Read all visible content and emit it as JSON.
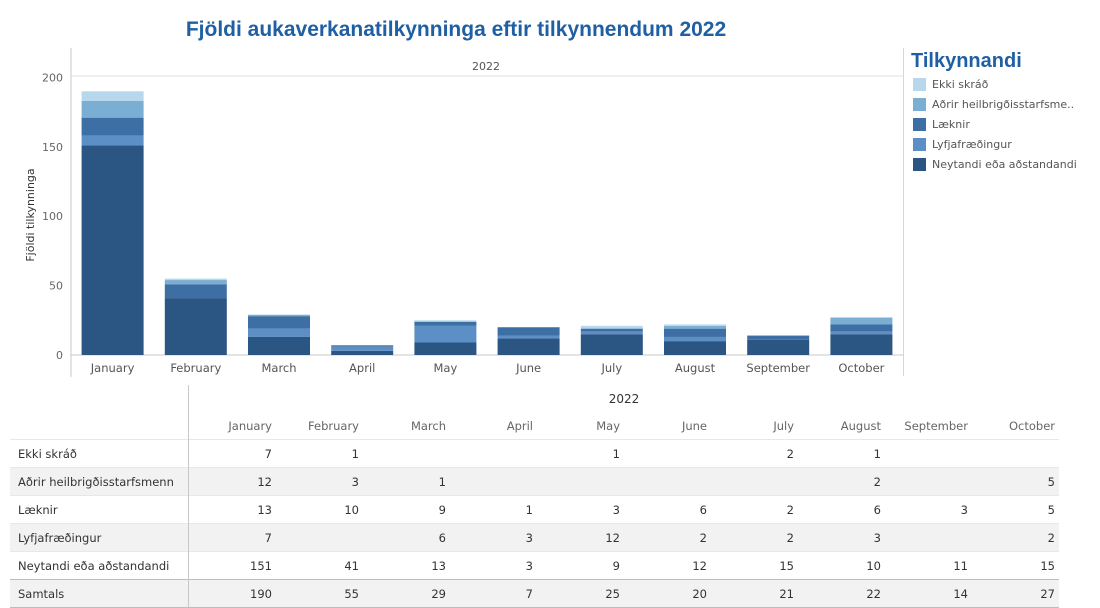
{
  "title": "Fjöldi aukaverkanatilkynninga eftir tilkynnendum 2022",
  "legend_title": "Tilkynnandi",
  "colors": {
    "Ekki skráð": "#b7d8ec",
    "Aðrir heilbrigðisstarfsmenn": "#7aaed3",
    "Læknir": "#3e6fa4",
    "Lyfjafræðingur": "#5b8fc5",
    "Neytandi eða aðstandandi": "#2b5583"
  },
  "legend": [
    {
      "label": "Ekki skráð",
      "color": "#b7d8ec"
    },
    {
      "label": "Aðrir heilbrigðisstarfsme..",
      "color": "#7aaed3"
    },
    {
      "label": "Læknir",
      "color": "#3e6fa4"
    },
    {
      "label": "Lyfjafræðingur",
      "color": "#5b8fc5"
    },
    {
      "label": "Neytandi eða aðstandandi",
      "color": "#2b5583"
    }
  ],
  "chart_data": {
    "type": "bar",
    "stacked": true,
    "panel_header": "2022",
    "title": "Fjöldi aukaverkanatilkynninga eftir tilkynnendum 2022",
    "ylabel": "Fjöldi tilkynninga",
    "xlabel": "",
    "ylim": [
      0,
      205
    ],
    "yticks": [
      0,
      50,
      100,
      150,
      200
    ],
    "categories": [
      "January",
      "February",
      "March",
      "April",
      "May",
      "June",
      "July",
      "August",
      "September",
      "October"
    ],
    "series": [
      {
        "name": "Neytandi eða aðstandandi",
        "values": [
          151,
          41,
          13,
          3,
          9,
          12,
          15,
          10,
          11,
          15
        ]
      },
      {
        "name": "Lyfjafræðingur",
        "values": [
          7,
          0,
          6,
          3,
          12,
          2,
          2,
          3,
          0,
          2
        ]
      },
      {
        "name": "Læknir",
        "values": [
          13,
          10,
          9,
          1,
          3,
          6,
          2,
          6,
          3,
          5
        ]
      },
      {
        "name": "Aðrir heilbrigðisstarfsmenn",
        "values": [
          12,
          3,
          1,
          0,
          0,
          0,
          0,
          2,
          0,
          5
        ]
      },
      {
        "name": "Ekki skráð",
        "values": [
          7,
          1,
          0,
          0,
          1,
          0,
          2,
          1,
          0,
          0
        ]
      }
    ],
    "grid": false,
    "legend_position": "right"
  },
  "table": {
    "year": "2022",
    "months": [
      "January",
      "February",
      "March",
      "April",
      "May",
      "June",
      "July",
      "August",
      "September",
      "October"
    ],
    "rows": [
      {
        "label": "Ekki skráð",
        "values": [
          "7",
          "1",
          "",
          "",
          "1",
          "",
          "2",
          "1",
          "",
          ""
        ]
      },
      {
        "label": "Aðrir heilbrigðisstarfsmenn",
        "values": [
          "12",
          "3",
          "1",
          "",
          "",
          "",
          "",
          "2",
          "",
          "5"
        ]
      },
      {
        "label": "Læknir",
        "values": [
          "13",
          "10",
          "9",
          "1",
          "3",
          "6",
          "2",
          "6",
          "3",
          "5"
        ]
      },
      {
        "label": "Lyfjafræðingur",
        "values": [
          "7",
          "",
          "6",
          "3",
          "12",
          "2",
          "2",
          "3",
          "",
          "2"
        ]
      },
      {
        "label": "Neytandi eða aðstandandi",
        "values": [
          "151",
          "41",
          "13",
          "3",
          "9",
          "12",
          "15",
          "10",
          "11",
          "15"
        ]
      }
    ],
    "total": {
      "label": "Samtals",
      "values": [
        "190",
        "55",
        "29",
        "7",
        "25",
        "20",
        "21",
        "22",
        "14",
        "27"
      ]
    }
  }
}
